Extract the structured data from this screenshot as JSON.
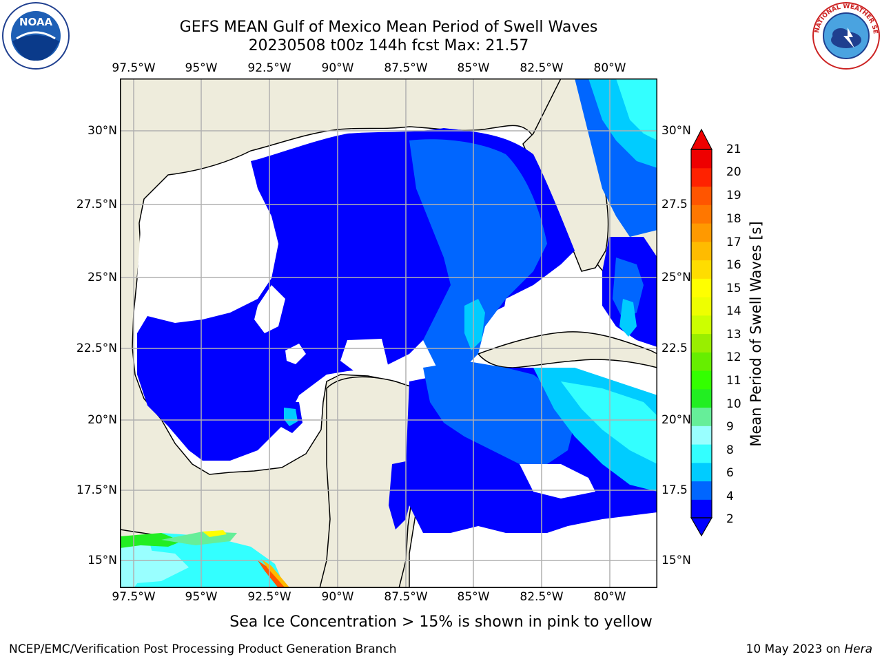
{
  "header": {
    "title_line1": "GEFS MEAN Gulf of Mexico Mean Period of Swell Waves",
    "title_line2": "20230508 t00z 144h fcst   Max: 21.57"
  },
  "logos": {
    "left": {
      "icon": "noaa-logo",
      "text": "NOAA"
    },
    "right": {
      "icon": "nws-logo",
      "text": "NATIONAL WEATHER SERVICE"
    }
  },
  "axes": {
    "lon_ticks_top": [
      "97.5°W",
      "95°W",
      "92.5°W",
      "90°W",
      "87.5°W",
      "85°W",
      "82.5°W",
      "80°W"
    ],
    "lon_ticks_bottom": [
      "97.5°W",
      "95°W",
      "92.5°W",
      "90°W",
      "87.5°W",
      "85°W",
      "82.5°W",
      "80°W"
    ],
    "lat_ticks_left": [
      "30°N",
      "27.5°N",
      "25°N",
      "22.5°N",
      "20°N",
      "17.5°N",
      "15°N"
    ],
    "lat_ticks_right": [
      "30°N",
      "27.5",
      "25°N",
      "22.5",
      "20°N",
      "17.5",
      "15°N"
    ]
  },
  "colorbar": {
    "title": "Mean Period of Swell Waves [s]",
    "labels": [
      "21",
      "20",
      "19",
      "18",
      "17",
      "16",
      "15",
      "14",
      "13",
      "12",
      "11",
      "10",
      "9",
      "8",
      "6",
      "4",
      "2"
    ],
    "colors": [
      "#0000ff",
      "#0066ff",
      "#00ccff",
      "#33ffff",
      "#99ffff",
      "#66ee99",
      "#22ee22",
      "#33ff00",
      "#66ee00",
      "#99ee00",
      "#ccff00",
      "#eeff00",
      "#ffff00",
      "#ffdd00",
      "#ffbb00",
      "#ff9900",
      "#ff7700",
      "#ff5500",
      "#ff2200",
      "#ee0000"
    ]
  },
  "map_colors": {
    "land": "#eeecdc",
    "sea_no_data": "#ffffff",
    "coast": "#000000",
    "grid": "#b0b0b0"
  },
  "note": "Sea Ice Concentration > 15% is shown in pink to yellow",
  "footer": {
    "left": "NCEP/EMC/Verification Post Processing Product Generation Branch",
    "date": "10 May 2023 on ",
    "machine": "Hera"
  }
}
